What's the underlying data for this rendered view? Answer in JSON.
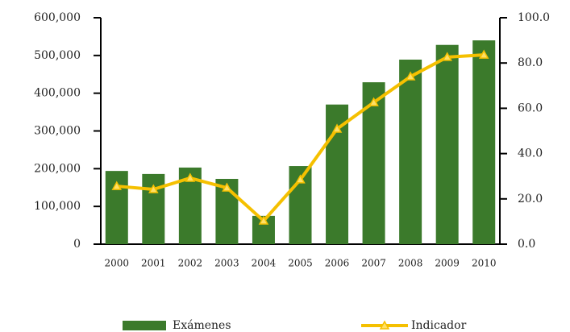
{
  "chart_data": {
    "type": "bar",
    "categories": [
      "2000",
      "2001",
      "2002",
      "2003",
      "2004",
      "2005",
      "2006",
      "2007",
      "2008",
      "2009",
      "2010"
    ],
    "series": [
      {
        "name": "Exámenes",
        "type": "bar",
        "color": "#3b7a2b",
        "values": [
          194000,
          186000,
          203000,
          173000,
          75000,
          207000,
          370000,
          429000,
          489000,
          528000,
          540000
        ]
      },
      {
        "name": "Indicador",
        "type": "line",
        "axis": "y2",
        "color": "#f5c000",
        "values": [
          25.6,
          24.2,
          29.2,
          24.9,
          10.3,
          28.5,
          50.9,
          62.6,
          74.0,
          82.6,
          83.6
        ]
      }
    ],
    "ylim": [
      0,
      600000
    ],
    "yticks": [
      0,
      {
        "value": 100000,
        "label": "100,000"
      },
      {
        "value": 200000,
        "label": "200,000"
      },
      {
        "value": 300000,
        "label": "300,000"
      },
      {
        "value": 400000,
        "label": "400,000"
      },
      {
        "value": 500000,
        "label": "500,000"
      },
      {
        "value": 600000,
        "label": "600,000"
      }
    ],
    "y2lim": [
      0,
      100
    ],
    "y2ticks": [
      {
        "value": 0,
        "label": "0.0"
      },
      {
        "value": 20,
        "label": "20.0"
      },
      {
        "value": 40,
        "label": "40.0"
      },
      {
        "value": 60,
        "label": "60.0"
      },
      {
        "value": 80,
        "label": "80.0"
      },
      {
        "value": 100,
        "label": "100.0"
      }
    ],
    "legend": "bottom",
    "grid": false
  }
}
